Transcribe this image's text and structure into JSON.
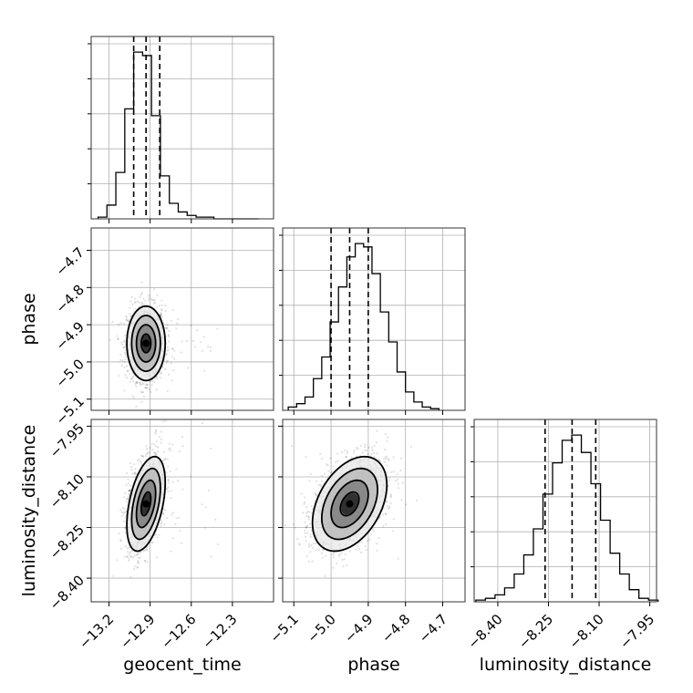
{
  "chart_data": {
    "type": "corner",
    "parameters": [
      "geocent_time",
      "phase",
      "luminosity_distance"
    ],
    "xlabels": [
      "geocent_time",
      "phase",
      "luminosity_distance"
    ],
    "ylabels": [
      "",
      "phase",
      "luminosity_distance"
    ],
    "ranges": {
      "geocent_time": [
        -13.33,
        -12.0
      ],
      "phase": [
        -5.13,
        -4.64
      ],
      "luminosity_distance": [
        -8.47,
        -7.93
      ]
    },
    "ticks": {
      "geocent_time": [
        -13.2,
        -12.9,
        -12.6,
        -12.3
      ],
      "phase": [
        -5.1,
        -5.0,
        -4.9,
        -4.8,
        -4.7
      ],
      "luminosity_distance": [
        -8.4,
        -8.25,
        -8.1,
        -7.95
      ]
    },
    "tick_labels": {
      "geocent_time": [
        "−13.2",
        "−12.9",
        "−12.6",
        "−12.3"
      ],
      "phase": [
        "−5.1",
        "−5.0",
        "−4.9",
        "−4.8",
        "−4.7"
      ],
      "luminosity_distance": [
        "−8.40",
        "−8.25",
        "−8.10",
        "−7.95"
      ]
    },
    "quantiles": {
      "geocent_time": [
        -13.02,
        -12.93,
        -12.83
      ],
      "phase": [
        -5.0,
        -4.95,
        -4.9
      ],
      "luminosity_distance": [
        -8.26,
        -8.18,
        -8.11
      ]
    },
    "histograms": {
      "geocent_time": {
        "edges_start": -13.28,
        "bin_width": 0.065,
        "counts": [
          1,
          8,
          27,
          64,
          97,
          95,
          60,
          25,
          9,
          4,
          2,
          1,
          1,
          0,
          0,
          0,
          0,
          0
        ]
      },
      "phase": {
        "edges_start": -5.115,
        "bin_width": 0.0225,
        "counts": [
          2,
          4,
          8,
          19,
          32,
          53,
          74,
          92,
          100,
          98,
          82,
          59,
          41,
          23,
          11,
          5,
          2,
          1
        ]
      },
      "luminosity_distance": {
        "edges_start": -8.465,
        "bin_width": 0.0284,
        "counts": [
          1,
          2,
          4,
          8,
          16,
          27,
          42,
          62,
          80,
          93,
          96,
          86,
          68,
          47,
          28,
          16,
          7,
          2,
          1
        ]
      }
    },
    "posterior": {
      "mean": [
        -12.93,
        -4.95,
        -8.18
      ],
      "std": [
        0.07,
        0.05,
        0.07
      ],
      "corr_time_phase": 0.0,
      "corr_time_distance": 0.45,
      "corr_phase_distance": 0.4
    },
    "grid": true,
    "contour_levels_sigma": [
      0.5,
      1.0,
      1.5,
      2.0
    ]
  }
}
